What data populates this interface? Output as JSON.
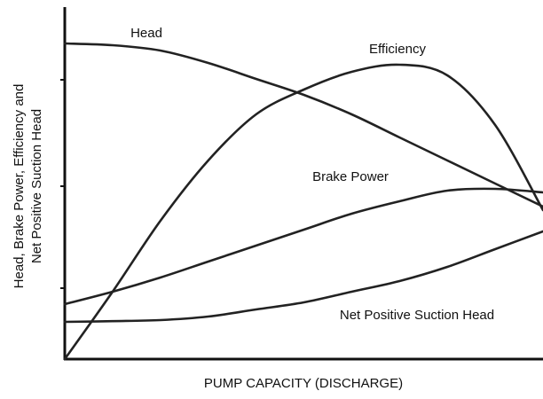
{
  "chart_data": {
    "type": "line",
    "xlabel": "PUMP CAPACITY (DISCHARGE)",
    "ylabel": [
      "Head, Brake Power, Efficiency and",
      "Net Positive Suction Head"
    ],
    "x": [
      0,
      10,
      20,
      30,
      40,
      50,
      60,
      70,
      80,
      90,
      100
    ],
    "xlim": [
      0,
      100
    ],
    "ylim": [
      0,
      100
    ],
    "series": [
      {
        "name": "Head",
        "color": "#222222",
        "values": [
          89,
          88.5,
          87,
          83.5,
          79,
          74.5,
          69,
          62.5,
          56,
          49.5,
          43
        ]
      },
      {
        "name": "Efficiency",
        "color": "#222222",
        "values": [
          0,
          19,
          39,
          56,
          69,
          76,
          81,
          83,
          80,
          66,
          42
        ]
      },
      {
        "name": "Brake Power",
        "color": "#222222",
        "values": [
          15.5,
          19,
          23,
          27.5,
          32,
          36.5,
          41,
          44.5,
          47.5,
          48,
          47
        ]
      },
      {
        "name": "Net Positive Suction Head",
        "color": "#222222",
        "values": [
          10.5,
          10.7,
          11,
          12,
          14,
          16,
          19,
          22,
          26,
          31,
          36
        ]
      }
    ]
  }
}
